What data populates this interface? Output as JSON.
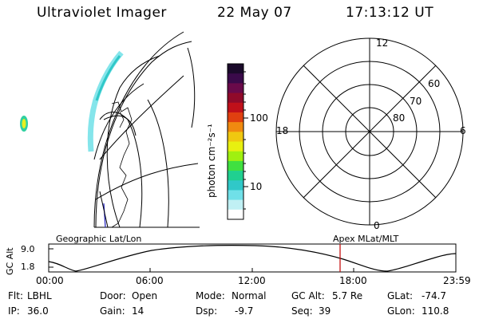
{
  "header": {
    "instrument": "Ultraviolet Imager",
    "date": "22 May 07",
    "time": "17:13:12 UT"
  },
  "colorbar": {
    "unit_label": "photon cm⁻²s⁻¹",
    "ticks": [
      "100",
      "10"
    ],
    "colors": [
      "#1a0a2a",
      "#3a0a4a",
      "#6a0a4a",
      "#900a2a",
      "#c0101a",
      "#e04010",
      "#f08a10",
      "#f0c810",
      "#e8f010",
      "#a0f010",
      "#40e040",
      "#20d090",
      "#30c8c8",
      "#70e0e8",
      "#c0f0f4",
      "#ffffff"
    ]
  },
  "polar_plot": {
    "mlt_labels": [
      "12",
      "18",
      "6",
      "0"
    ],
    "lat_labels": [
      "60",
      "70",
      "80"
    ]
  },
  "timeline": {
    "y_axis_label": "GC Alt",
    "y_ticks": [
      "9.0",
      "1.8"
    ],
    "left_label": "Geographic Lat/Lon",
    "right_label": "Apex MLat/MLT",
    "x_ticks": [
      "00:00",
      "06:00",
      "12:00",
      "18:00",
      "23:59"
    ],
    "marker_color": "#c00000"
  },
  "status": {
    "flt_label": "Flt:",
    "flt_value": "LBHL",
    "ip_label": "IP:",
    "ip_value": "36.0",
    "door_label": "Door:",
    "door_value": "Open",
    "gain_label": "Gain:",
    "gain_value": "14",
    "mode_label": "Mode:",
    "mode_value": "Normal",
    "dsp_label": "Dsp:",
    "dsp_value": "-9.7",
    "gcalt_label": "GC Alt:",
    "gcalt_value": "5.7 Re",
    "seq_label": "Seq:",
    "seq_value": "39",
    "glat_label": "GLat:",
    "glat_value": "-74.7",
    "glon_label": "GLon:",
    "glon_value": "110.8"
  }
}
